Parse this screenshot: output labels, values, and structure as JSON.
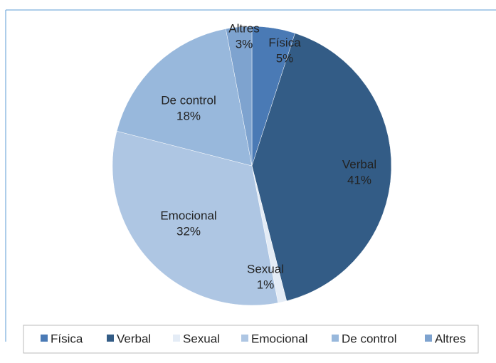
{
  "chart_data": {
    "type": "pie",
    "categories": [
      "Física",
      "Verbal",
      "Sexual",
      "Emocional",
      "De control",
      "Altres"
    ],
    "values": [
      5,
      41,
      1,
      32,
      18,
      3
    ],
    "value_labels": [
      "5%",
      "41%",
      "1%",
      "32%",
      "18%",
      "3%"
    ],
    "colors": [
      "#4a7ab5",
      "#335c86",
      "#e4ecf6",
      "#aec6e3",
      "#98b8dc",
      "#7ea3cf"
    ],
    "legend": "bottom"
  }
}
